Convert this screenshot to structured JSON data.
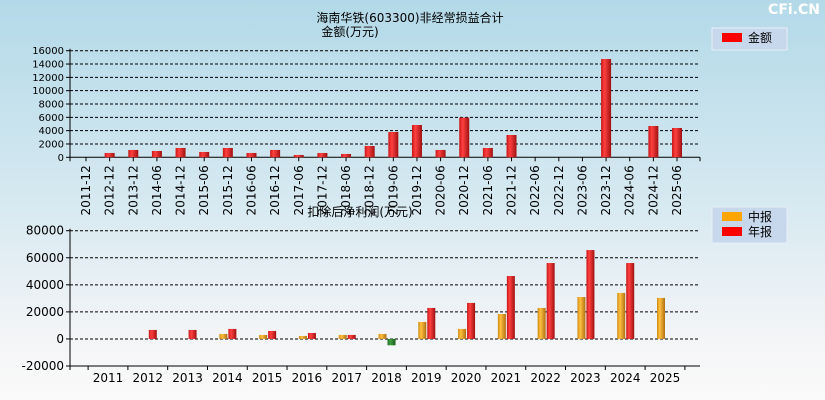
{
  "watermark": "CFi.CN",
  "chart_data": [
    {
      "type": "bar",
      "title": "海南华铁(603300)非经常损益合计",
      "subtitle": "金额(万元)",
      "legend": [
        {
          "name": "金额",
          "color": "#ff0000"
        }
      ],
      "legend_position": "top-right",
      "grid": true,
      "ylim": [
        0,
        16000
      ],
      "yticks": [
        0,
        2000,
        4000,
        6000,
        8000,
        10000,
        12000,
        14000,
        16000
      ],
      "categories": [
        "2011-12",
        "2012-12",
        "2013-12",
        "2014-06",
        "2014-12",
        "2015-06",
        "2015-12",
        "2016-06",
        "2016-12",
        "2017-06",
        "2017-12",
        "2018-06",
        "2018-12",
        "2019-06",
        "2019-12",
        "2020-06",
        "2020-12",
        "2021-06",
        "2021-12",
        "2022-06",
        "2022-12",
        "2023-06",
        "2023-12",
        "2024-06",
        "2024-12",
        "2025-06"
      ],
      "series": [
        {
          "name": "金额",
          "values": [
            0,
            650,
            1100,
            950,
            1400,
            800,
            1400,
            650,
            1100,
            350,
            650,
            500,
            1700,
            3800,
            4850,
            1100,
            5950,
            1400,
            3350,
            0,
            0,
            0,
            14750,
            0,
            4700,
            4400
          ]
        }
      ]
    },
    {
      "type": "bar",
      "title": "扣除后净利润(万元)",
      "legend": [
        {
          "name": "中报",
          "color": "#ffa500"
        },
        {
          "name": "年报",
          "color": "#ff0000"
        }
      ],
      "legend_position": "top-right",
      "grid": true,
      "ylim": [
        -20000,
        80000
      ],
      "yticks": [
        -20000,
        0,
        20000,
        40000,
        60000,
        80000
      ],
      "categories": [
        "2011",
        "2012",
        "2013",
        "2014",
        "2015",
        "2016",
        "2017",
        "2018",
        "2019",
        "2020",
        "2021",
        "2022",
        "2023",
        "2024",
        "2025"
      ],
      "series": [
        {
          "name": "中报",
          "values": [
            null,
            null,
            null,
            3700,
            2950,
            2200,
            2950,
            3700,
            12550,
            7400,
            18450,
            22900,
            31000,
            34000,
            30300
          ]
        },
        {
          "name": "年报",
          "values": [
            null,
            6650,
            6650,
            7400,
            5900,
            4400,
            2950,
            -4700,
            22900,
            26600,
            46500,
            56100,
            65700,
            56100,
            null
          ]
        }
      ],
      "negative_color": "#2e8b2e"
    }
  ]
}
